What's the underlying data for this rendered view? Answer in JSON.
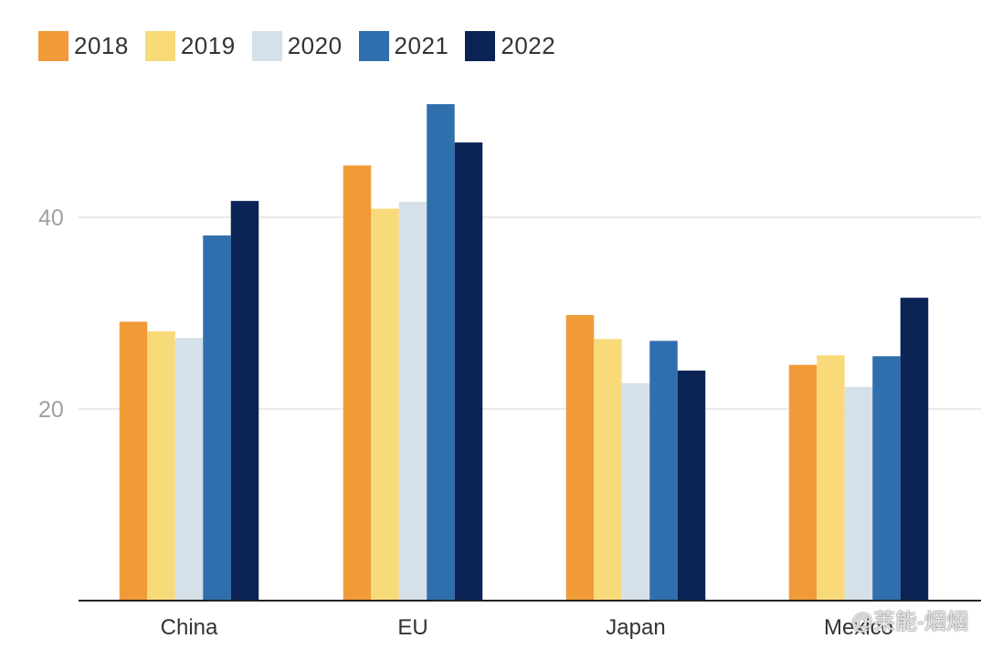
{
  "colors": {
    "2018": "#f09b38",
    "2019": "#f8da7a",
    "2020": "#d6e0e8",
    "2021": "#2f6fad",
    "2022": "#0b2355",
    "grid": "#e3e3e3",
    "axis": "#222222",
    "tick_text": "#a0a0a0",
    "category_text": "#333333"
  },
  "legend": {
    "placement": "top-left",
    "items": [
      "2018",
      "2019",
      "2020",
      "2021",
      "2022"
    ]
  },
  "watermark": "@莱能-烟烟",
  "chart_data": {
    "type": "bar",
    "title": "",
    "xlabel": "",
    "ylabel": "",
    "categories": [
      "China",
      "EU",
      "Japan",
      "Mexico"
    ],
    "series": [
      {
        "name": "2018",
        "values": [
          29.1,
          45.4,
          29.8,
          24.6
        ]
      },
      {
        "name": "2019",
        "values": [
          28.1,
          40.9,
          27.3,
          25.6
        ]
      },
      {
        "name": "2020",
        "values": [
          27.4,
          41.6,
          22.7,
          22.3
        ]
      },
      {
        "name": "2021",
        "values": [
          38.1,
          51.8,
          27.1,
          25.5
        ]
      },
      {
        "name": "2022",
        "values": [
          41.7,
          47.8,
          24.0,
          31.6
        ]
      }
    ],
    "ylim": [
      0,
      52
    ],
    "yticks": [
      20,
      40
    ],
    "grid": true
  }
}
